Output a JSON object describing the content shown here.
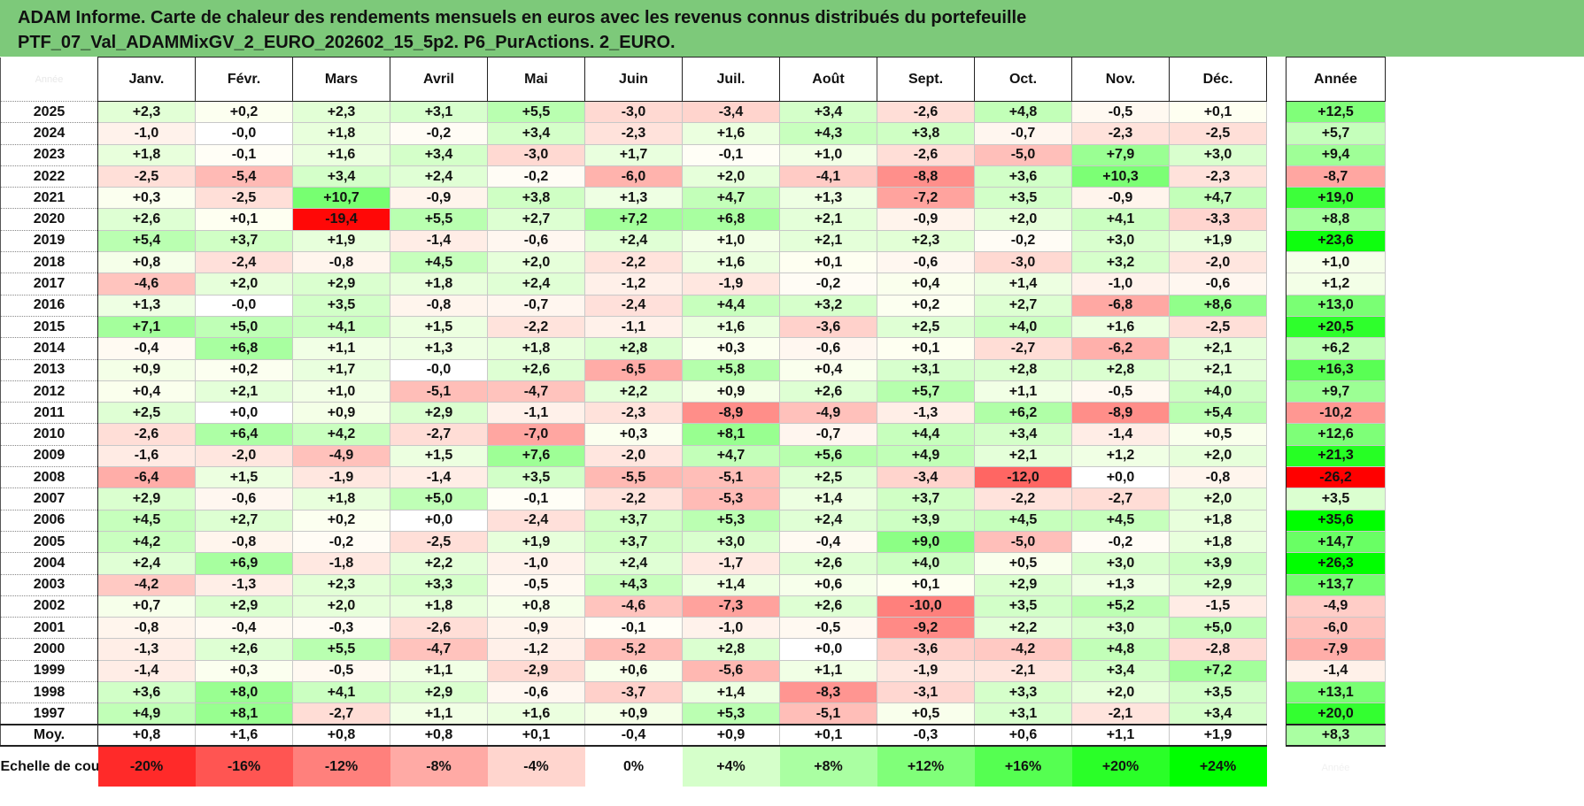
{
  "title": {
    "line1": "ADAM Informe. Carte de chaleur des rendements mensuels en euros avec les revenus connus distribués du portefeuille",
    "line2": "PTF_07_Val_ADAMMixGV_2_EURO_202602_15_5p2. P6_PurActions. 2_EURO."
  },
  "chart_data": {
    "type": "heatmap",
    "months": [
      "Janv.",
      "Févr.",
      "Mars",
      "Avril",
      "Mai",
      "Juin",
      "Juil.",
      "Août",
      "Sept.",
      "Oct.",
      "Nov.",
      "Déc."
    ],
    "year_header": "Année",
    "rows": [
      {
        "year": "2025",
        "values": [
          "+2,3",
          "+0,2",
          "+2,3",
          "+3,1",
          "+5,5",
          "-3,0",
          "-3,4",
          "+3,4",
          "-2,6",
          "+4,8",
          "-0,5",
          "+0,1"
        ],
        "annual": "+12,5"
      },
      {
        "year": "2024",
        "values": [
          "-1,0",
          "-0,0",
          "+1,8",
          "-0,2",
          "+3,4",
          "-2,3",
          "+1,6",
          "+4,3",
          "+3,8",
          "-0,7",
          "-2,3",
          "-2,5"
        ],
        "annual": "+5,7"
      },
      {
        "year": "2023",
        "values": [
          "+1,8",
          "-0,1",
          "+1,6",
          "+3,4",
          "-3,0",
          "+1,7",
          "-0,1",
          "+1,0",
          "-2,6",
          "-5,0",
          "+7,9",
          "+3,0"
        ],
        "annual": "+9,4"
      },
      {
        "year": "2022",
        "values": [
          "-2,5",
          "-5,4",
          "+3,4",
          "+2,4",
          "-0,2",
          "-6,0",
          "+2,0",
          "-4,1",
          "-8,8",
          "+3,6",
          "+10,3",
          "-2,3"
        ],
        "annual": "-8,7"
      },
      {
        "year": "2021",
        "values": [
          "+0,3",
          "-2,5",
          "+10,7",
          "-0,9",
          "+3,8",
          "+1,3",
          "+4,7",
          "+1,3",
          "-7,2",
          "+3,5",
          "-0,9",
          "+4,7"
        ],
        "annual": "+19,0"
      },
      {
        "year": "2020",
        "values": [
          "+2,6",
          "+0,1",
          "-19,4",
          "+5,5",
          "+2,7",
          "+7,2",
          "+6,8",
          "+2,1",
          "-0,9",
          "+2,0",
          "+4,1",
          "-3,3"
        ],
        "annual": "+8,8"
      },
      {
        "year": "2019",
        "values": [
          "+5,4",
          "+3,7",
          "+1,9",
          "-1,4",
          "-0,6",
          "+2,4",
          "+1,0",
          "+2,1",
          "+2,3",
          "-0,2",
          "+3,0",
          "+1,9"
        ],
        "annual": "+23,6"
      },
      {
        "year": "2018",
        "values": [
          "+0,8",
          "-2,4",
          "-0,8",
          "+4,5",
          "+2,0",
          "-2,2",
          "+1,6",
          "+0,1",
          "-0,6",
          "-3,0",
          "+3,2",
          "-2,0"
        ],
        "annual": "+1,0"
      },
      {
        "year": "2017",
        "values": [
          "-4,6",
          "+2,0",
          "+2,9",
          "+1,8",
          "+2,4",
          "-1,2",
          "-1,9",
          "-0,2",
          "+0,4",
          "+1,4",
          "-1,0",
          "-0,6"
        ],
        "annual": "+1,2"
      },
      {
        "year": "2016",
        "values": [
          "+1,3",
          "-0,0",
          "+3,5",
          "-0,8",
          "-0,7",
          "-2,4",
          "+4,4",
          "+3,2",
          "+0,2",
          "+2,7",
          "-6,8",
          "+8,6"
        ],
        "annual": "+13,0"
      },
      {
        "year": "2015",
        "values": [
          "+7,1",
          "+5,0",
          "+4,1",
          "+1,5",
          "-2,2",
          "-1,1",
          "+1,6",
          "-3,6",
          "+2,5",
          "+4,0",
          "+1,6",
          "-2,5"
        ],
        "annual": "+20,5"
      },
      {
        "year": "2014",
        "values": [
          "-0,4",
          "+6,8",
          "+1,1",
          "+1,3",
          "+1,8",
          "+2,8",
          "+0,3",
          "-0,6",
          "+0,1",
          "-2,7",
          "-6,2",
          "+2,1"
        ],
        "annual": "+6,2"
      },
      {
        "year": "2013",
        "values": [
          "+0,9",
          "+0,2",
          "+1,7",
          "-0,0",
          "+2,6",
          "-6,5",
          "+5,8",
          "+0,4",
          "+3,1",
          "+2,8",
          "+2,8",
          "+2,1"
        ],
        "annual": "+16,3"
      },
      {
        "year": "2012",
        "values": [
          "+0,4",
          "+2,1",
          "+1,0",
          "-5,1",
          "-4,7",
          "+2,2",
          "+0,9",
          "+2,6",
          "+5,7",
          "+1,1",
          "-0,5",
          "+4,0"
        ],
        "annual": "+9,7"
      },
      {
        "year": "2011",
        "values": [
          "+2,5",
          "+0,0",
          "+0,9",
          "+2,9",
          "-1,1",
          "-2,3",
          "-8,9",
          "-4,9",
          "-1,3",
          "+6,2",
          "-8,9",
          "+5,4"
        ],
        "annual": "-10,2"
      },
      {
        "year": "2010",
        "values": [
          "-2,6",
          "+6,4",
          "+4,2",
          "-2,7",
          "-7,0",
          "+0,3",
          "+8,1",
          "-0,7",
          "+4,4",
          "+3,4",
          "-1,4",
          "+0,5"
        ],
        "annual": "+12,6"
      },
      {
        "year": "2009",
        "values": [
          "-1,6",
          "-2,0",
          "-4,9",
          "+1,5",
          "+7,6",
          "-2,0",
          "+4,7",
          "+5,6",
          "+4,9",
          "+2,1",
          "+1,2",
          "+2,0"
        ],
        "annual": "+21,3"
      },
      {
        "year": "2008",
        "values": [
          "-6,4",
          "+1,5",
          "-1,9",
          "-1,4",
          "+3,5",
          "-5,5",
          "-5,1",
          "+2,5",
          "-3,4",
          "-12,0",
          "+0,0",
          "-0,8"
        ],
        "annual": "-26,2"
      },
      {
        "year": "2007",
        "values": [
          "+2,9",
          "-0,6",
          "+1,8",
          "+5,0",
          "-0,1",
          "-2,2",
          "-5,3",
          "+1,4",
          "+3,7",
          "-2,2",
          "-2,7",
          "+2,0"
        ],
        "annual": "+3,5"
      },
      {
        "year": "2006",
        "values": [
          "+4,5",
          "+2,7",
          "+0,2",
          "+0,0",
          "-2,4",
          "+3,7",
          "+5,3",
          "+2,4",
          "+3,9",
          "+4,5",
          "+4,5",
          "+1,8"
        ],
        "annual": "+35,6"
      },
      {
        "year": "2005",
        "values": [
          "+4,2",
          "-0,8",
          "-0,2",
          "-2,5",
          "+1,9",
          "+3,7",
          "+3,0",
          "-0,4",
          "+9,0",
          "-5,0",
          "-0,2",
          "+1,8"
        ],
        "annual": "+14,7"
      },
      {
        "year": "2004",
        "values": [
          "+2,4",
          "+6,9",
          "-1,8",
          "+2,2",
          "-1,0",
          "+2,4",
          "-1,7",
          "+2,6",
          "+4,0",
          "+0,5",
          "+3,0",
          "+3,9"
        ],
        "annual": "+26,3"
      },
      {
        "year": "2003",
        "values": [
          "-4,2",
          "-1,3",
          "+2,3",
          "+3,3",
          "-0,5",
          "+4,3",
          "+1,4",
          "+0,6",
          "+0,1",
          "+2,9",
          "+1,3",
          "+2,9"
        ],
        "annual": "+13,7"
      },
      {
        "year": "2002",
        "values": [
          "+0,7",
          "+2,9",
          "+2,0",
          "+1,8",
          "+0,8",
          "-4,6",
          "-7,3",
          "+2,6",
          "-10,0",
          "+3,5",
          "+5,2",
          "-1,5"
        ],
        "annual": "-4,9"
      },
      {
        "year": "2001",
        "values": [
          "-0,8",
          "-0,4",
          "-0,3",
          "-2,6",
          "-0,9",
          "-0,1",
          "-1,0",
          "-0,5",
          "-9,2",
          "+2,2",
          "+3,0",
          "+5,0"
        ],
        "annual": "-6,0"
      },
      {
        "year": "2000",
        "values": [
          "-1,3",
          "+2,6",
          "+5,5",
          "-4,7",
          "-1,2",
          "-5,2",
          "+2,8",
          "+0,0",
          "-3,6",
          "-4,2",
          "+4,8",
          "-2,8"
        ],
        "annual": "-7,9"
      },
      {
        "year": "1999",
        "values": [
          "-1,4",
          "+0,3",
          "-0,5",
          "+1,1",
          "-2,9",
          "+0,6",
          "-5,6",
          "+1,1",
          "-1,9",
          "-2,1",
          "+3,4",
          "+7,2"
        ],
        "annual": "-1,4"
      },
      {
        "year": "1998",
        "values": [
          "+3,6",
          "+8,0",
          "+4,1",
          "+2,9",
          "-0,6",
          "-3,7",
          "+1,4",
          "-8,3",
          "-3,1",
          "+3,3",
          "+2,0",
          "+3,5"
        ],
        "annual": "+13,1"
      },
      {
        "year": "1997",
        "values": [
          "+4,9",
          "+8,1",
          "-2,7",
          "+1,1",
          "+1,6",
          "+0,9",
          "+5,3",
          "-5,1",
          "+0,5",
          "+3,1",
          "-2,1",
          "+3,4"
        ],
        "annual": "+20,0"
      }
    ],
    "average": {
      "label": "Moy.",
      "values": [
        "+0,8",
        "+1,6",
        "+0,8",
        "+0,8",
        "+0,1",
        "-0,4",
        "+0,9",
        "+0,1",
        "-0,3",
        "+0,6",
        "+1,1",
        "+1,9"
      ],
      "annual": "+8,3"
    },
    "color_scale": {
      "label": "Echelle de couleur",
      "stops": [
        "-20%",
        "-16%",
        "-12%",
        "-8%",
        "-4%",
        "0%",
        "+4%",
        "+8%",
        "+12%",
        "+16%",
        "+20%",
        "+24%"
      ]
    },
    "colors": {
      "negative_max": "#ff0000",
      "neutral": "#ffffff",
      "positive_max": "#00ff00",
      "title_bar": "#7dc97a"
    }
  }
}
